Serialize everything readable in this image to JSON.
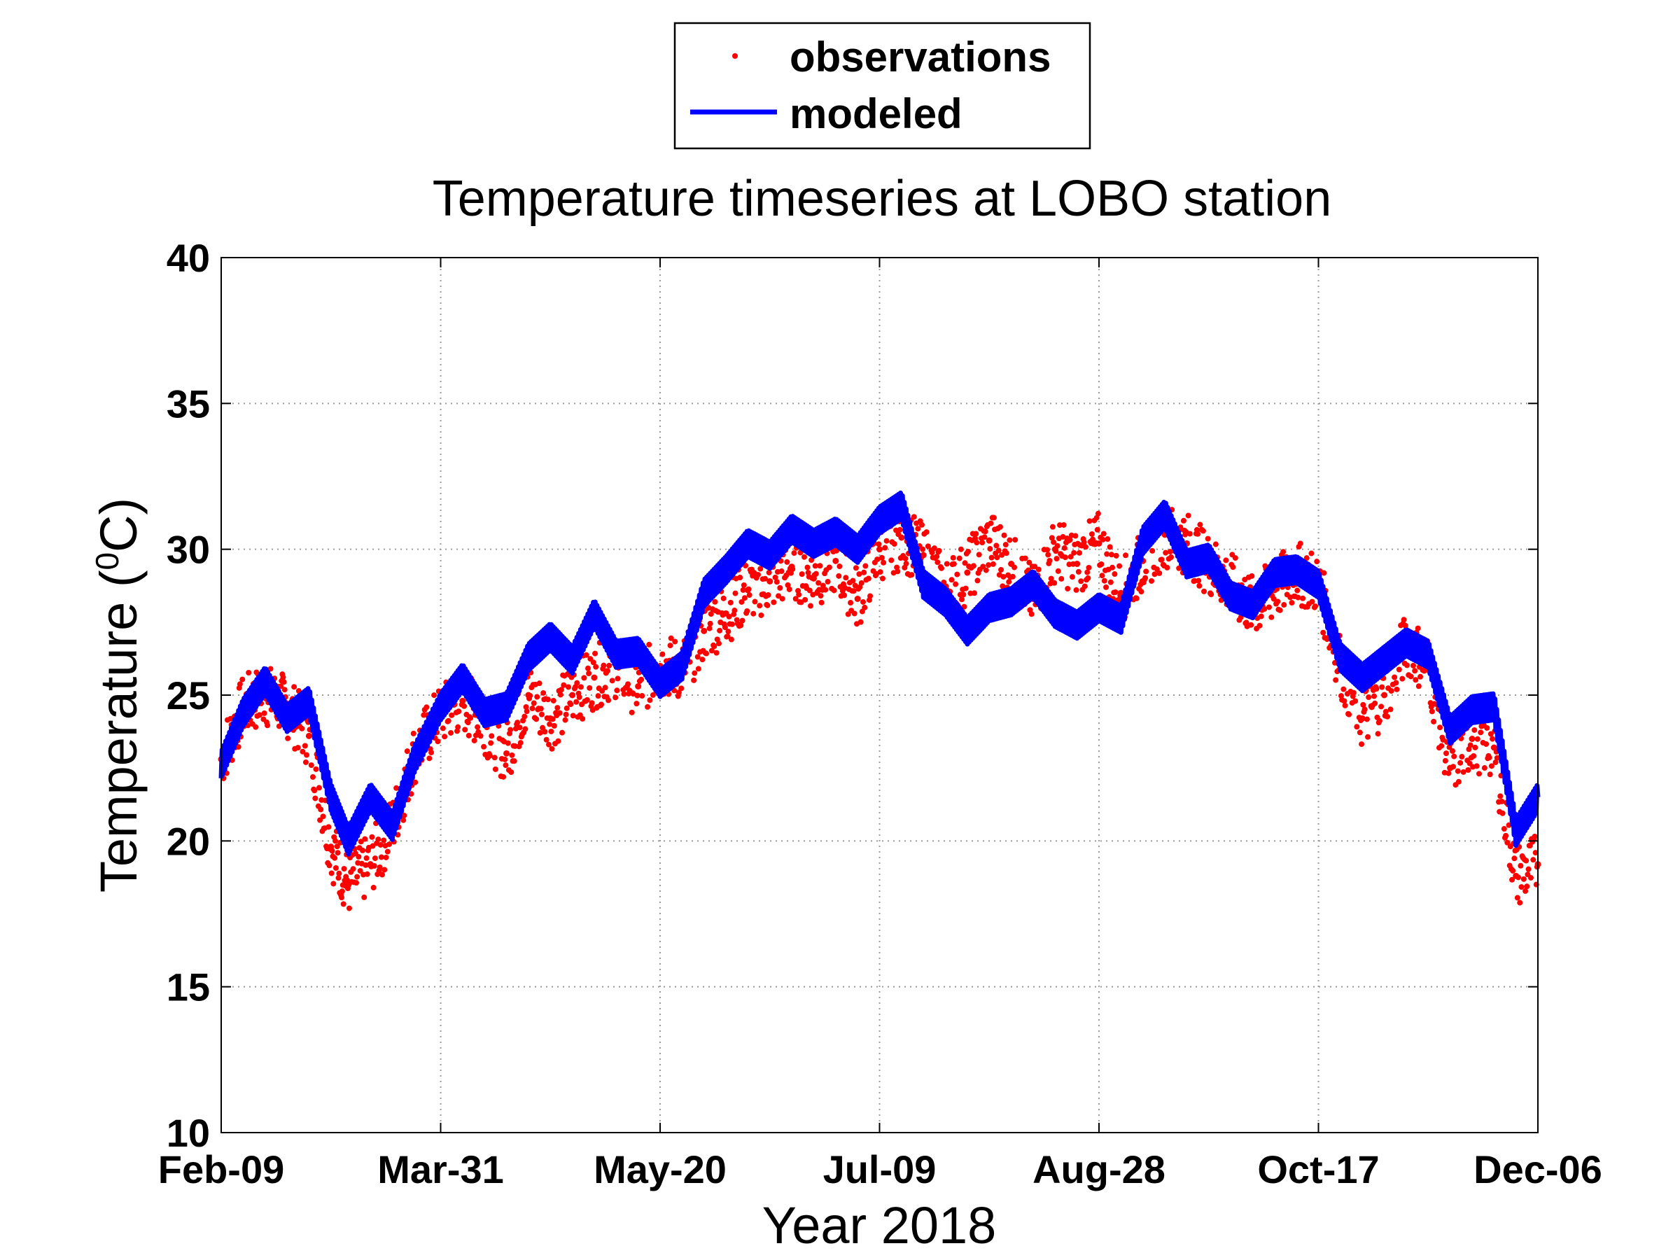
{
  "chart_data": {
    "type": "scatter",
    "title": "Temperature timeseries at LOBO station",
    "xlabel": "Year 2018",
    "ylabel_prefix": "Temperature (",
    "ylabel_superscript": "0",
    "ylabel_suffix": "C)",
    "ylim": [
      10,
      40
    ],
    "yticks": [
      10,
      15,
      20,
      25,
      30,
      35,
      40
    ],
    "xlim": [
      "2018-02-09",
      "2018-12-06"
    ],
    "xticks": [
      "2018-02-09",
      "2018-03-31",
      "2018-05-20",
      "2018-07-09",
      "2018-08-28",
      "2018-10-17",
      "2018-12-06"
    ],
    "xtick_labels": [
      "Feb-09",
      "Mar-31",
      "May-20",
      "Jul-09",
      "Aug-28",
      "Oct-17",
      "Dec-06"
    ],
    "grid": true,
    "legend_position": "top-center (above title)",
    "series": [
      {
        "name": "observations",
        "style": "dots",
        "color": "#ff0000",
        "x": [
          "2018-02-09",
          "2018-02-14",
          "2018-02-19",
          "2018-02-24",
          "2018-03-01",
          "2018-03-06",
          "2018-03-10",
          "2018-03-15",
          "2018-03-20",
          "2018-03-25",
          "2018-03-31",
          "2018-04-05",
          "2018-04-10",
          "2018-04-15",
          "2018-04-20",
          "2018-04-25",
          "2018-04-30",
          "2018-05-05",
          "2018-05-10",
          "2018-05-15",
          "2018-05-20",
          "2018-05-25",
          "2018-05-30",
          "2018-06-04",
          "2018-06-09",
          "2018-06-14",
          "2018-06-19",
          "2018-06-24",
          "2018-06-29",
          "2018-07-04",
          "2018-07-09",
          "2018-07-14",
          "2018-07-19",
          "2018-07-24",
          "2018-07-29",
          "2018-08-03",
          "2018-08-08",
          "2018-08-13",
          "2018-08-18",
          "2018-08-23",
          "2018-08-28",
          "2018-09-02",
          "2018-09-07",
          "2018-09-12",
          "2018-09-17",
          "2018-09-22",
          "2018-09-27",
          "2018-10-02",
          "2018-10-07",
          "2018-10-12",
          "2018-10-17",
          "2018-10-22",
          "2018-10-27",
          "2018-11-01",
          "2018-11-06",
          "2018-11-11",
          "2018-11-16",
          "2018-11-21",
          "2018-11-26",
          "2018-12-01",
          "2018-12-06"
        ],
        "y": [
          22.8,
          24.6,
          25.0,
          24.6,
          23.6,
          19.8,
          18.5,
          19.2,
          20.5,
          23.0,
          24.3,
          24.8,
          24.1,
          23.0,
          25.0,
          24.2,
          25.0,
          25.6,
          26.0,
          25.3,
          26.0,
          25.9,
          27.2,
          27.8,
          28.6,
          28.9,
          29.4,
          29.0,
          29.6,
          28.3,
          30.0,
          30.4,
          29.8,
          28.6,
          29.2,
          30.3,
          29.5,
          28.3,
          30.0,
          29.5,
          30.2,
          28.5,
          29.6,
          30.5,
          30.2,
          29.5,
          28.8,
          28.0,
          28.6,
          29.2,
          28.8,
          26.0,
          24.2,
          25.0,
          26.8,
          26.0,
          22.5,
          23.5,
          23.2,
          18.8,
          19.2
        ]
      },
      {
        "name": "modeled",
        "style": "line",
        "color": "#0000ff",
        "x": [
          "2018-02-09",
          "2018-02-14",
          "2018-02-19",
          "2018-02-24",
          "2018-03-01",
          "2018-03-06",
          "2018-03-10",
          "2018-03-15",
          "2018-03-20",
          "2018-03-25",
          "2018-03-31",
          "2018-04-05",
          "2018-04-10",
          "2018-04-15",
          "2018-04-20",
          "2018-04-25",
          "2018-04-30",
          "2018-05-05",
          "2018-05-10",
          "2018-05-15",
          "2018-05-20",
          "2018-05-25",
          "2018-05-30",
          "2018-06-04",
          "2018-06-09",
          "2018-06-14",
          "2018-06-19",
          "2018-06-24",
          "2018-06-29",
          "2018-07-04",
          "2018-07-09",
          "2018-07-14",
          "2018-07-19",
          "2018-07-24",
          "2018-07-29",
          "2018-08-03",
          "2018-08-08",
          "2018-08-13",
          "2018-08-18",
          "2018-08-23",
          "2018-08-28",
          "2018-09-02",
          "2018-09-07",
          "2018-09-12",
          "2018-09-17",
          "2018-09-22",
          "2018-09-27",
          "2018-10-02",
          "2018-10-07",
          "2018-10-12",
          "2018-10-17",
          "2018-10-22",
          "2018-10-27",
          "2018-11-01",
          "2018-11-06",
          "2018-11-11",
          "2018-11-16",
          "2018-11-21",
          "2018-11-26",
          "2018-12-01",
          "2018-12-06"
        ],
        "y": [
          22.6,
          24.4,
          25.5,
          24.2,
          24.8,
          21.5,
          20.0,
          21.5,
          20.5,
          22.8,
          24.6,
          25.6,
          24.4,
          24.6,
          26.3,
          27.0,
          26.2,
          27.8,
          26.4,
          26.5,
          25.4,
          26.0,
          28.5,
          29.3,
          30.2,
          29.8,
          30.7,
          30.2,
          30.6,
          30.0,
          31.0,
          31.5,
          28.8,
          28.2,
          27.2,
          28.0,
          28.2,
          28.8,
          27.8,
          27.4,
          28.0,
          27.6,
          30.3,
          31.2,
          29.5,
          29.7,
          28.4,
          28.1,
          29.2,
          29.3,
          28.8,
          26.3,
          25.6,
          26.2,
          26.8,
          26.4,
          23.8,
          24.5,
          24.6,
          20.3,
          21.5
        ]
      }
    ]
  }
}
